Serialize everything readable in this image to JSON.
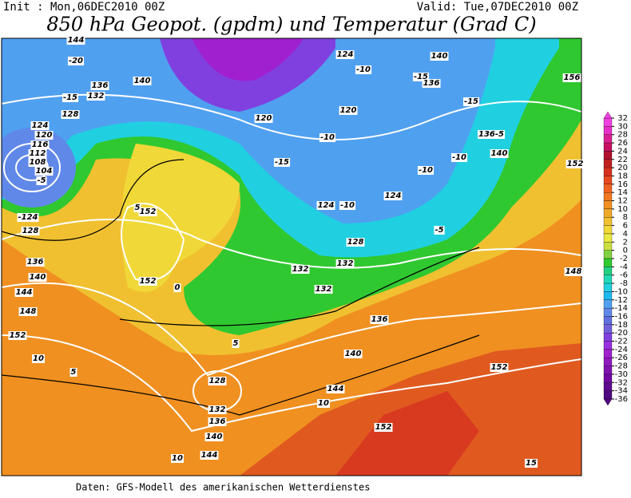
{
  "header": {
    "init": "Init : Mon,06DEC2010 00Z",
    "valid": "Valid: Tue,07DEC2010 00Z"
  },
  "title": "850 hPa Geopot. (gpdm) und Temperatur (Grad C)",
  "footer": "Daten: GFS-Modell des amerikanischen Wetterdienstes",
  "colorbar": {
    "ticks": [
      32,
      30,
      28,
      26,
      24,
      22,
      20,
      18,
      16,
      14,
      12,
      10,
      8,
      6,
      4,
      2,
      0,
      -2,
      -4,
      -6,
      -8,
      -10,
      -12,
      -14,
      -16,
      -18,
      -20,
      -22,
      -24,
      -26,
      -28,
      -30,
      -32,
      -34,
      -36
    ],
    "colors": [
      "#f040e0",
      "#e830c8",
      "#d82090",
      "#c81060",
      "#b01030",
      "#c02020",
      "#d83020",
      "#e84820",
      "#f06020",
      "#f07820",
      "#f09020",
      "#f0a828",
      "#f0c030",
      "#f0d838",
      "#e8e840",
      "#c8e040",
      "#80d040",
      "#30c830",
      "#20d080",
      "#20d8b8",
      "#20d0e0",
      "#20b8f0",
      "#50a0f0",
      "#6088e8",
      "#6070e0",
      "#7060d8",
      "#8040e0",
      "#9830e0",
      "#a020d0",
      "#9018c0",
      "#8010b0",
      "#7008a0",
      "#600890",
      "#500880"
    ]
  },
  "contour_labels": [
    "144",
    "-20",
    "140",
    "136",
    "132",
    "-15",
    "128",
    "124",
    "120",
    "116",
    "112",
    "108",
    "104",
    "-5",
    "-124",
    "128",
    "136",
    "140",
    "144",
    "148",
    "152",
    "10",
    "5",
    "152",
    "152",
    "5",
    "0",
    "5",
    "128",
    "132",
    "136",
    "140",
    "144",
    "10",
    "-10",
    "-15",
    "136",
    "140",
    "156",
    "-15",
    "136-5",
    "140",
    "-10",
    "-10",
    "124",
    "-10",
    "124",
    "-5",
    "128",
    "132",
    "132",
    "132",
    "136",
    "140",
    "144",
    "10",
    "152",
    "152",
    "15",
    "-15",
    "-10",
    "120",
    "124",
    "152",
    "148",
    "120"
  ]
}
